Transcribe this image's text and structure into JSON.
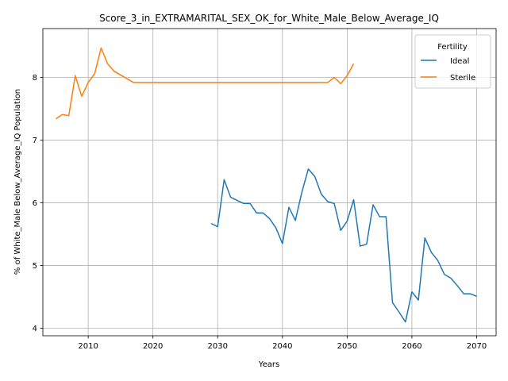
{
  "chart_data": {
    "type": "line",
    "title": "Score_3_in_EXTRAMARITAL_SEX_OK_for_White_Male_Below_Average_IQ",
    "xlabel": "Years",
    "ylabel": "% of White_Male Below_Average_IQ Population",
    "xlim": [
      2003,
      2073
    ],
    "ylim": [
      3.88,
      8.78
    ],
    "xticks": [
      2010,
      2020,
      2030,
      2040,
      2050,
      2060,
      2070
    ],
    "yticks": [
      4,
      5,
      6,
      7,
      8
    ],
    "grid": true,
    "legend": {
      "title": "Fertility",
      "position": "top-right"
    },
    "series": [
      {
        "name": "Ideal",
        "color": "#1f77b4",
        "x": [
          2029,
          2030,
          2031,
          2032,
          2033,
          2034,
          2035,
          2036,
          2037,
          2038,
          2039,
          2040,
          2041,
          2042,
          2043,
          2044,
          2045,
          2046,
          2047,
          2048,
          2049,
          2050,
          2051,
          2052,
          2053,
          2054,
          2055,
          2056,
          2057,
          2058,
          2059,
          2060,
          2061,
          2062,
          2063,
          2064,
          2065,
          2066,
          2067,
          2068,
          2069,
          2070
        ],
        "y": [
          5.67,
          5.62,
          6.37,
          6.09,
          6.04,
          5.99,
          5.99,
          5.84,
          5.84,
          5.75,
          5.6,
          5.35,
          5.93,
          5.72,
          6.17,
          6.54,
          6.42,
          6.14,
          6.02,
          5.99,
          5.56,
          5.71,
          6.05,
          5.31,
          5.34,
          5.97,
          5.78,
          5.78,
          4.41,
          4.26,
          4.1,
          4.58,
          4.45,
          5.44,
          5.21,
          5.08,
          4.86,
          4.8,
          4.68,
          4.55,
          4.55,
          4.51
        ]
      },
      {
        "name": "Sterile",
        "color": "#ff7f0e",
        "x": [
          2005,
          2006,
          2007,
          2008,
          2009,
          2010,
          2011,
          2012,
          2013,
          2014,
          2015,
          2016,
          2017,
          2018,
          2019,
          2020,
          2021,
          2022,
          2023,
          2024,
          2025,
          2026,
          2027,
          2028,
          2029,
          2030,
          2031,
          2032,
          2033,
          2034,
          2035,
          2036,
          2037,
          2038,
          2039,
          2040,
          2041,
          2042,
          2043,
          2044,
          2045,
          2046,
          2047,
          2048,
          2049,
          2050,
          2051
        ],
        "y": [
          7.34,
          7.41,
          7.39,
          8.03,
          7.7,
          7.92,
          8.06,
          8.47,
          8.22,
          8.1,
          8.04,
          7.98,
          7.92,
          7.92,
          7.92,
          7.92,
          7.92,
          7.92,
          7.92,
          7.92,
          7.92,
          7.92,
          7.92,
          7.92,
          7.92,
          7.92,
          7.92,
          7.92,
          7.92,
          7.92,
          7.92,
          7.92,
          7.92,
          7.92,
          7.92,
          7.92,
          7.92,
          7.92,
          7.92,
          7.92,
          7.92,
          7.92,
          7.92,
          8.0,
          7.9,
          8.03,
          8.22
        ]
      }
    ]
  }
}
